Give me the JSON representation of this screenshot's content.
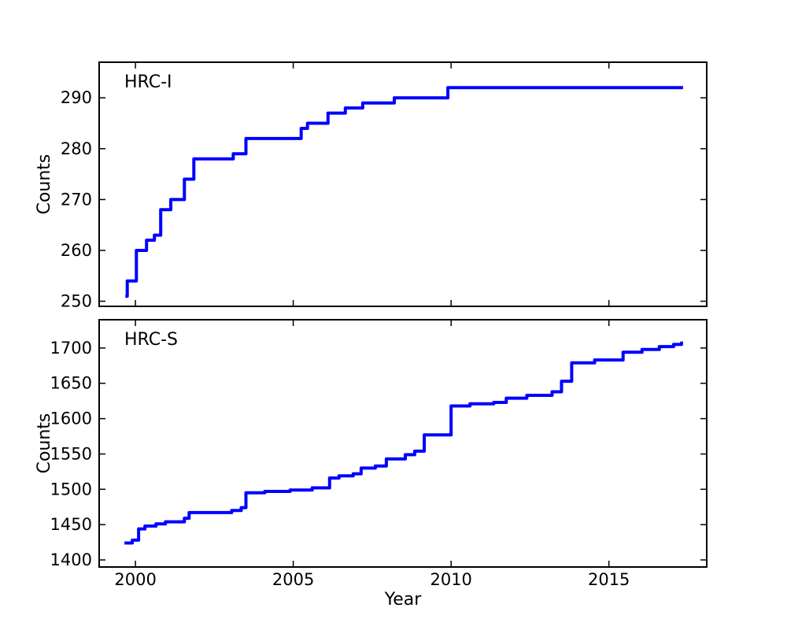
{
  "figure": {
    "background": "#ffffff",
    "frame_color": "#000000"
  },
  "labels": {
    "xlabel": "Year",
    "ylabel": "Counts"
  },
  "chart_data": [
    {
      "type": "line",
      "style": "step-after",
      "title": "HRC-I",
      "ylabel": "Counts",
      "xlabel": "",
      "legend": "none",
      "grid": false,
      "line_color": "#0000ff",
      "line_width": 4,
      "xlim": [
        1998.85,
        2018.1
      ],
      "ylim": [
        249,
        297
      ],
      "xticks": [
        2000,
        2005,
        2010,
        2015
      ],
      "xtick_labels": [
        "",
        "",
        "",
        ""
      ],
      "yticks": [
        250,
        260,
        270,
        280,
        290
      ],
      "ytick_labels": [
        "250",
        "260",
        "270",
        "280",
        "290"
      ],
      "x_end": 2017.35,
      "points": [
        [
          1999.68,
          251
        ],
        [
          1999.74,
          254
        ],
        [
          2000.03,
          260
        ],
        [
          2000.35,
          262
        ],
        [
          2000.6,
          263
        ],
        [
          2000.8,
          268
        ],
        [
          2001.12,
          270
        ],
        [
          2001.55,
          274
        ],
        [
          2001.85,
          278
        ],
        [
          2003.1,
          279
        ],
        [
          2003.5,
          282
        ],
        [
          2005.25,
          284
        ],
        [
          2005.45,
          285
        ],
        [
          2006.1,
          287
        ],
        [
          2006.65,
          288
        ],
        [
          2007.2,
          289
        ],
        [
          2008.2,
          290
        ],
        [
          2009.9,
          292
        ]
      ]
    },
    {
      "type": "line",
      "style": "step-after",
      "title": "HRC-S",
      "ylabel": "Counts",
      "xlabel": "Year",
      "legend": "none",
      "grid": false,
      "line_color": "#0000ff",
      "line_width": 4,
      "xlim": [
        1998.85,
        2018.1
      ],
      "ylim": [
        1390,
        1740
      ],
      "xticks": [
        2000,
        2005,
        2010,
        2015
      ],
      "xtick_labels": [
        "2000",
        "2005",
        "2010",
        "2015"
      ],
      "yticks": [
        1400,
        1450,
        1500,
        1550,
        1600,
        1650,
        1700
      ],
      "ytick_labels": [
        "1400",
        "1450",
        "1500",
        "1550",
        "1600",
        "1650",
        "1700"
      ],
      "x_end": 2017.35,
      "points": [
        [
          1999.65,
          1424
        ],
        [
          1999.9,
          1428
        ],
        [
          2000.1,
          1444
        ],
        [
          2000.3,
          1448
        ],
        [
          2000.65,
          1451
        ],
        [
          2000.95,
          1454
        ],
        [
          2001.55,
          1459
        ],
        [
          2001.7,
          1467
        ],
        [
          2003.05,
          1470
        ],
        [
          2003.35,
          1474
        ],
        [
          2003.5,
          1495
        ],
        [
          2004.1,
          1497
        ],
        [
          2004.9,
          1499
        ],
        [
          2005.6,
          1502
        ],
        [
          2006.15,
          1516
        ],
        [
          2006.45,
          1519
        ],
        [
          2006.9,
          1522
        ],
        [
          2007.15,
          1530
        ],
        [
          2007.6,
          1533
        ],
        [
          2007.95,
          1543
        ],
        [
          2008.55,
          1549
        ],
        [
          2008.85,
          1554
        ],
        [
          2009.15,
          1577
        ],
        [
          2010.0,
          1618
        ],
        [
          2010.6,
          1621
        ],
        [
          2011.35,
          1623
        ],
        [
          2011.75,
          1629
        ],
        [
          2012.4,
          1633
        ],
        [
          2013.2,
          1638
        ],
        [
          2013.5,
          1653
        ],
        [
          2013.82,
          1679
        ],
        [
          2014.55,
          1683
        ],
        [
          2015.45,
          1694
        ],
        [
          2016.05,
          1698
        ],
        [
          2016.6,
          1702
        ],
        [
          2017.05,
          1705
        ],
        [
          2017.3,
          1707
        ]
      ]
    }
  ]
}
